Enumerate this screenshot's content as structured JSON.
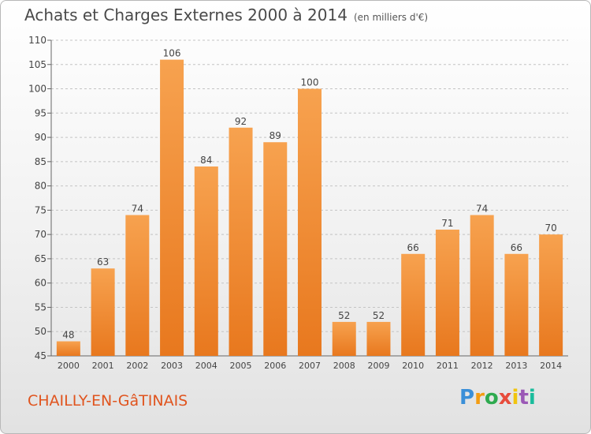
{
  "header": {
    "title": "Achats et Charges Externes 2000 à 2014",
    "unit": "(en milliers d'€)"
  },
  "footer": {
    "city": "CHAILLY-EN-GâTINAIS",
    "logo": "Proxiti"
  },
  "colors": {
    "bar_top": "#f7a24f",
    "bar_bottom": "#e8781e",
    "city_text": "#e0541e",
    "grid": "#c4c4c4",
    "axis_text": "#444444"
  },
  "chart_data": {
    "type": "bar",
    "title": "Achats et Charges Externes 2000 à 2014",
    "subtitle": "(en milliers d'€)",
    "xlabel": "",
    "ylabel": "",
    "categories": [
      "2000",
      "2001",
      "2002",
      "2003",
      "2004",
      "2005",
      "2006",
      "2007",
      "2008",
      "2009",
      "2010",
      "2011",
      "2012",
      "2013",
      "2014"
    ],
    "values": [
      48,
      63,
      74,
      106,
      84,
      92,
      89,
      100,
      52,
      52,
      66,
      71,
      74,
      66,
      70
    ],
    "ylim": [
      45,
      110
    ],
    "yticks": [
      45,
      50,
      55,
      60,
      65,
      70,
      75,
      80,
      85,
      90,
      95,
      100,
      105,
      110
    ],
    "grid": true,
    "grid_style": "dashed horizontal",
    "legend": "none"
  }
}
